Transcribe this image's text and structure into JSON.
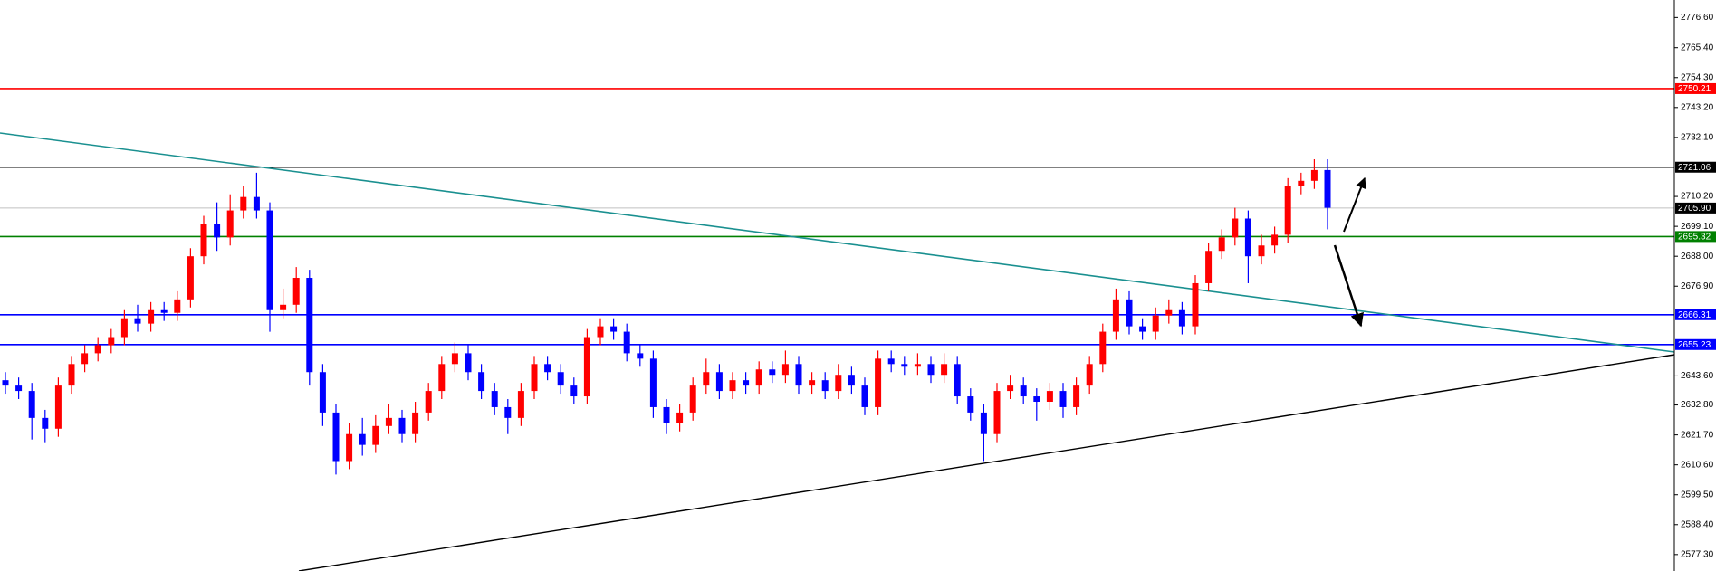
{
  "chart_data": {
    "type": "candlestick",
    "up_color": "#ff0000",
    "down_color": "#0000ff",
    "ylim": [
      2571.2,
      2783.1
    ],
    "yticks": [
      {
        "value": 2776.6,
        "label": "2776.60"
      },
      {
        "value": 2765.4,
        "label": "2765.40"
      },
      {
        "value": 2754.3,
        "label": "2754.30"
      },
      {
        "value": 2743.2,
        "label": "2743.20"
      },
      {
        "value": 2732.1,
        "label": "2732.10"
      },
      {
        "value": 2710.2,
        "label": "2710.20"
      },
      {
        "value": 2699.1,
        "label": "2699.10"
      },
      {
        "value": 2688,
        "label": "2688.00"
      },
      {
        "value": 2676.9,
        "label": "2676.90"
      },
      {
        "value": 2643.6,
        "label": "2643.60"
      },
      {
        "value": 2632.8,
        "label": "2632.80"
      },
      {
        "value": 2621.7,
        "label": "2621.70"
      },
      {
        "value": 2610.6,
        "label": "2610.60"
      },
      {
        "value": 2599.5,
        "label": "2599.50"
      },
      {
        "value": 2588.4,
        "label": "2588.40"
      },
      {
        "value": 2577.3,
        "label": "2577.30"
      }
    ],
    "levels": [
      {
        "value": 2750.21,
        "label": "2750.21",
        "color": "#ff0000"
      },
      {
        "value": 2721.06,
        "label": "2721.06",
        "color": "#000000"
      },
      {
        "value": 2705.9,
        "label": "2705.90",
        "color": "#c0c0c0"
      },
      {
        "value": 2695.32,
        "label": "2695.32",
        "color": "#008000"
      },
      {
        "value": 2666.31,
        "label": "2666.31",
        "color": "#0000ff"
      },
      {
        "value": 2655.23,
        "label": "2655.23",
        "color": "#0000ff"
      }
    ],
    "open": [
      2642,
      2640,
      2638,
      2628,
      2624,
      2640,
      2648,
      2652,
      2655,
      2658,
      2665,
      2663,
      2668,
      2667,
      2672,
      2688,
      2700,
      2695,
      2705,
      2710,
      2705,
      2668,
      2670,
      2680,
      2645,
      2630,
      2612,
      2622,
      2618,
      2625,
      2628,
      2622,
      2630,
      2638,
      2648,
      2652,
      2645,
      2638,
      2632,
      2628,
      2638,
      2648,
      2645,
      2640,
      2636,
      2658,
      2662,
      2660,
      2652,
      2650,
      2632,
      2626,
      2630,
      2640,
      2645,
      2638,
      2642,
      2640,
      2646,
      2644,
      2648,
      2640,
      2642,
      2638,
      2644,
      2640,
      2632,
      2650,
      2648,
      2647,
      2648,
      2644,
      2648,
      2636,
      2630,
      2622,
      2638,
      2640,
      2636,
      2634,
      2638,
      2632,
      2640,
      2648,
      2660,
      2672,
      2662,
      2660,
      2666,
      2668,
      2662,
      2678,
      2690,
      2695,
      2702,
      2688,
      2692,
      2696,
      2714,
      2716,
      2720
    ],
    "high": [
      2645,
      2643,
      2641,
      2631,
      2643,
      2651,
      2655,
      2658,
      2661,
      2668,
      2670,
      2671,
      2671,
      2675,
      2691,
      2703,
      2708,
      2711,
      2714,
      2719,
      2708,
      2676,
      2684,
      2683,
      2648,
      2633,
      2626,
      2628,
      2629,
      2633,
      2631,
      2634,
      2641,
      2651,
      2656,
      2655,
      2648,
      2641,
      2635,
      2641,
      2651,
      2651,
      2648,
      2643,
      2661,
      2665,
      2665,
      2663,
      2655,
      2653,
      2635,
      2633,
      2643,
      2650,
      2648,
      2645,
      2645,
      2649,
      2649,
      2653,
      2651,
      2645,
      2645,
      2648,
      2647,
      2643,
      2653,
      2653,
      2651,
      2652,
      2651,
      2652,
      2651,
      2639,
      2633,
      2641,
      2644,
      2643,
      2639,
      2641,
      2641,
      2643,
      2651,
      2663,
      2676,
      2675,
      2665,
      2669,
      2672,
      2671,
      2681,
      2693,
      2698,
      2706,
      2705,
      2696,
      2699,
      2717,
      2719,
      2724,
      2724
    ],
    "low": [
      2637,
      2635,
      2620,
      2619,
      2621,
      2637,
      2645,
      2649,
      2652,
      2655,
      2660,
      2660,
      2664,
      2664,
      2669,
      2685,
      2690,
      2692,
      2702,
      2702,
      2660,
      2665,
      2667,
      2640,
      2625,
      2607,
      2609,
      2614,
      2615,
      2622,
      2619,
      2619,
      2627,
      2635,
      2645,
      2642,
      2635,
      2629,
      2622,
      2625,
      2635,
      2642,
      2637,
      2633,
      2633,
      2655,
      2657,
      2649,
      2647,
      2628,
      2622,
      2623,
      2627,
      2637,
      2635,
      2635,
      2637,
      2637,
      2641,
      2641,
      2637,
      2637,
      2635,
      2635,
      2637,
      2629,
      2629,
      2645,
      2644,
      2644,
      2641,
      2641,
      2633,
      2627,
      2612,
      2619,
      2635,
      2633,
      2627,
      2631,
      2628,
      2629,
      2637,
      2645,
      2657,
      2659,
      2657,
      2657,
      2663,
      2659,
      2659,
      2675,
      2687,
      2692,
      2678,
      2685,
      2689,
      2693,
      2711,
      2713,
      2698
    ],
    "close": [
      2640,
      2638,
      2628,
      2624,
      2640,
      2648,
      2652,
      2655,
      2658,
      2665,
      2663,
      2668,
      2667,
      2672,
      2688,
      2700,
      2695,
      2705,
      2710,
      2705,
      2668,
      2670,
      2680,
      2645,
      2630,
      2612,
      2622,
      2618,
      2625,
      2628,
      2622,
      2630,
      2638,
      2648,
      2652,
      2645,
      2638,
      2632,
      2628,
      2638,
      2648,
      2645,
      2640,
      2636,
      2658,
      2662,
      2660,
      2652,
      2650,
      2632,
      2626,
      2630,
      2640,
      2645,
      2638,
      2642,
      2640,
      2646,
      2644,
      2648,
      2640,
      2642,
      2638,
      2644,
      2640,
      2632,
      2650,
      2648,
      2647,
      2648,
      2644,
      2648,
      2636,
      2630,
      2622,
      2638,
      2640,
      2636,
      2634,
      2638,
      2632,
      2640,
      2648,
      2660,
      2672,
      2662,
      2660,
      2666,
      2668,
      2662,
      2678,
      2690,
      2695,
      2702,
      2688,
      2692,
      2696,
      2714,
      2716,
      2720,
      2706
    ]
  }
}
